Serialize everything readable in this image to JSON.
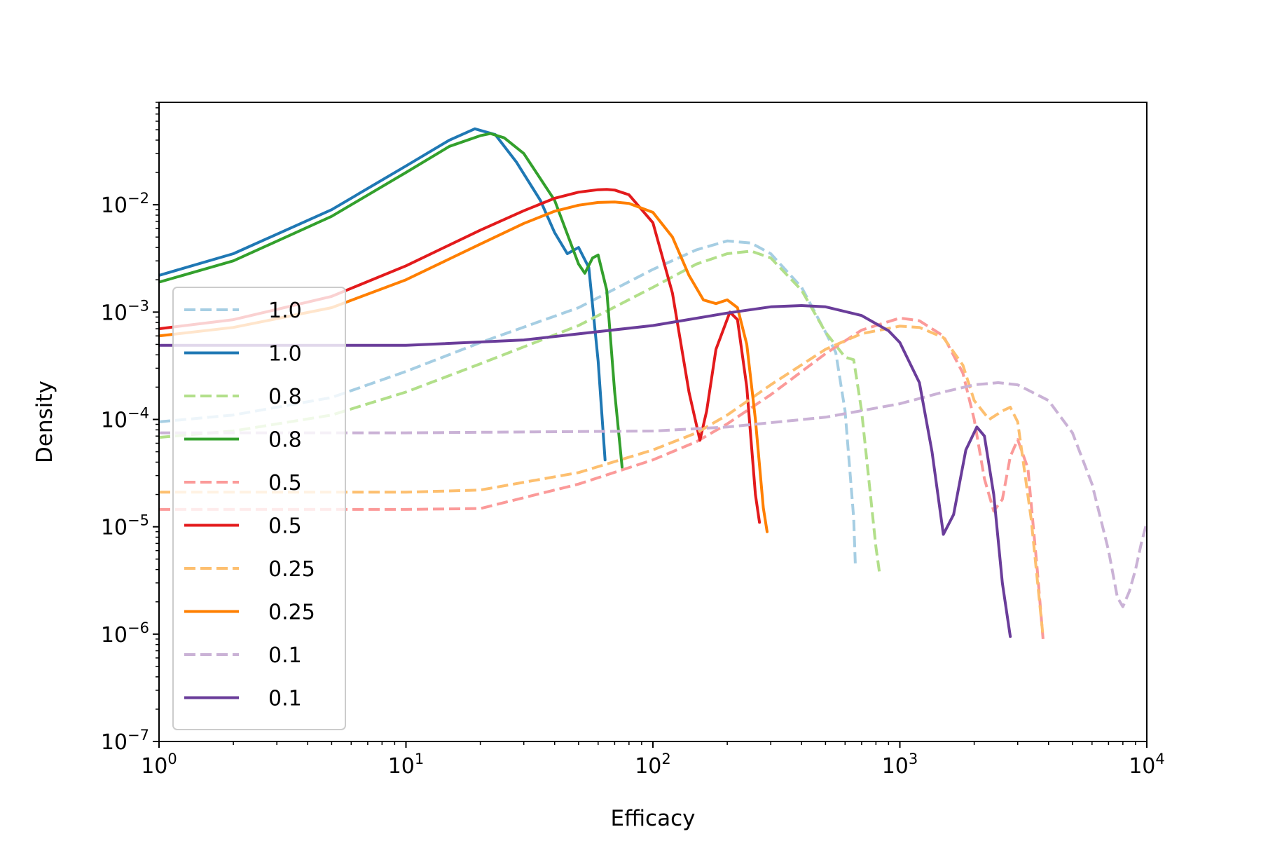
{
  "chart_data": {
    "type": "line",
    "title": "",
    "xlabel": "Efficacy",
    "ylabel": "Density",
    "xscale": "log",
    "yscale": "log",
    "xlim": [
      1,
      10000
    ],
    "ylim": [
      1e-07,
      0.09
    ],
    "grid": false,
    "legend": "lower-left",
    "x_ticks": [
      {
        "base": "10",
        "exp": "0",
        "value": 1
      },
      {
        "base": "10",
        "exp": "1",
        "value": 10
      },
      {
        "base": "10",
        "exp": "2",
        "value": 100
      },
      {
        "base": "10",
        "exp": "3",
        "value": 1000
      },
      {
        "base": "10",
        "exp": "4",
        "value": 10000
      }
    ],
    "y_ticks": [
      {
        "base": "10",
        "exp": "−7",
        "value": 1e-07
      },
      {
        "base": "10",
        "exp": "−6",
        "value": 1e-06
      },
      {
        "base": "10",
        "exp": "−5",
        "value": 1e-05
      },
      {
        "base": "10",
        "exp": "−4",
        "value": 0.0001
      },
      {
        "base": "10",
        "exp": "−3",
        "value": 0.001
      },
      {
        "base": "10",
        "exp": "−2",
        "value": 0.01
      }
    ],
    "series": [
      {
        "name": "1.0",
        "color": "#a6cee3",
        "dashed": true,
        "x": [
          1,
          2,
          5,
          10,
          20,
          50,
          100,
          150,
          200,
          250,
          300,
          400,
          500,
          550,
          600,
          650,
          660
        ],
        "y": [
          9.5e-05,
          0.00011,
          0.00016,
          0.00028,
          0.00052,
          0.0011,
          0.0025,
          0.0038,
          0.0046,
          0.0044,
          0.0035,
          0.0017,
          0.00065,
          0.00042,
          0.00012,
          1.2e-05,
          4.5e-06
        ]
      },
      {
        "name": "1.0",
        "color": "#1f78b4",
        "dashed": false,
        "x": [
          1,
          2,
          5,
          10,
          15,
          19,
          23,
          28,
          35,
          40,
          45,
          50,
          55,
          60,
          62,
          64
        ],
        "y": [
          0.0022,
          0.0035,
          0.009,
          0.023,
          0.04,
          0.051,
          0.045,
          0.025,
          0.011,
          0.0055,
          0.0035,
          0.004,
          0.0026,
          0.00035,
          0.00012,
          4.2e-05
        ]
      },
      {
        "name": "0.8",
        "color": "#b2df8a",
        "dashed": true,
        "x": [
          1,
          2,
          5,
          10,
          20,
          50,
          100,
          150,
          200,
          250,
          300,
          400,
          500,
          600,
          650,
          700,
          800,
          830
        ],
        "y": [
          6.8e-05,
          7.8e-05,
          0.00011,
          0.00018,
          0.00033,
          0.00075,
          0.0017,
          0.0028,
          0.0035,
          0.0037,
          0.0032,
          0.0016,
          0.00065,
          0.00038,
          0.00036,
          0.00012,
          6.5e-06,
          3.5e-06
        ]
      },
      {
        "name": "0.8",
        "color": "#33a02c",
        "dashed": false,
        "x": [
          1,
          2,
          5,
          10,
          15,
          20,
          22,
          25,
          30,
          40,
          50,
          53,
          57,
          60,
          65,
          70,
          75
        ],
        "y": [
          0.0019,
          0.003,
          0.0078,
          0.02,
          0.035,
          0.044,
          0.046,
          0.042,
          0.03,
          0.011,
          0.0028,
          0.0023,
          0.0032,
          0.0034,
          0.0016,
          0.00018,
          3.6e-05
        ]
      },
      {
        "name": "0.5",
        "color": "#fb9a99",
        "dashed": true,
        "x": [
          1,
          10,
          20,
          50,
          100,
          150,
          200,
          300,
          500,
          700,
          1000,
          1200,
          1500,
          1800,
          2000,
          2200,
          2400,
          2600,
          2800,
          3000,
          3300,
          3600,
          3800
        ],
        "y": [
          1.45e-05,
          1.45e-05,
          1.48e-05,
          2.5e-05,
          4.2e-05,
          6.2e-05,
          9.1e-05,
          0.00017,
          0.00041,
          0.00068,
          0.00088,
          0.00083,
          0.0006,
          0.00027,
          0.0001,
          2.8e-05,
          1.4e-05,
          1.8e-05,
          4.5e-05,
          6.5e-05,
          3.5e-05,
          4e-06,
          9e-07
        ]
      },
      {
        "name": "0.5",
        "color": "#e31a1c",
        "dashed": false,
        "x": [
          1,
          2,
          5,
          10,
          20,
          30,
          40,
          50,
          60,
          65,
          70,
          80,
          100,
          120,
          140,
          155,
          165,
          180,
          205,
          220,
          240,
          260,
          270
        ],
        "y": [
          0.0007,
          0.00085,
          0.0014,
          0.0027,
          0.0058,
          0.0088,
          0.0115,
          0.0131,
          0.0138,
          0.0139,
          0.0137,
          0.0124,
          0.0068,
          0.0015,
          0.00018,
          6.4e-05,
          0.00012,
          0.00045,
          0.001,
          0.00085,
          0.0002,
          2e-05,
          1.1e-05
        ]
      },
      {
        "name": "0.25",
        "color": "#fdbf6f",
        "dashed": true,
        "x": [
          1,
          10,
          20,
          50,
          100,
          150,
          200,
          300,
          500,
          700,
          1000,
          1200,
          1500,
          1800,
          2000,
          2300,
          2600,
          2800,
          3000,
          3400,
          3800
        ],
        "y": [
          2.1e-05,
          2.1e-05,
          2.2e-05,
          3.2e-05,
          5.2e-05,
          7.5e-05,
          0.00011,
          0.00021,
          0.00045,
          0.00063,
          0.00074,
          0.00072,
          0.00058,
          0.00032,
          0.00015,
          0.0001,
          0.00012,
          0.00013,
          9.5e-05,
          1.2e-05,
          9.5e-07
        ]
      },
      {
        "name": "0.25",
        "color": "#ff7f00",
        "dashed": false,
        "x": [
          1,
          2,
          5,
          10,
          20,
          30,
          40,
          50,
          60,
          70,
          80,
          100,
          120,
          140,
          160,
          180,
          200,
          220,
          240,
          260,
          280,
          290
        ],
        "y": [
          0.0006,
          0.00072,
          0.0011,
          0.002,
          0.0043,
          0.0067,
          0.0087,
          0.0099,
          0.0105,
          0.0106,
          0.0103,
          0.0085,
          0.005,
          0.0022,
          0.0013,
          0.0012,
          0.0013,
          0.0011,
          0.0005,
          0.0001,
          1.5e-05,
          9e-06
        ]
      },
      {
        "name": "0.1",
        "color": "#cab2d6",
        "dashed": true,
        "x": [
          1,
          10,
          100,
          200,
          500,
          1000,
          1500,
          2000,
          2500,
          3000,
          4000,
          5000,
          6000,
          7000,
          7600,
          8000,
          8500,
          9000,
          9500,
          10000
        ],
        "y": [
          7.5e-05,
          7.5e-05,
          7.8e-05,
          8.5e-05,
          0.000105,
          0.00014,
          0.00018,
          0.00021,
          0.00022,
          0.00021,
          0.00015,
          7.5e-05,
          2.5e-05,
          6e-06,
          2.2e-06,
          1.8e-06,
          2.5e-06,
          4e-06,
          7e-06,
          1.1e-05
        ]
      },
      {
        "name": "0.1",
        "color": "#6a3d9a",
        "dashed": false,
        "x": [
          1,
          3,
          10,
          30,
          100,
          200,
          300,
          400,
          500,
          700,
          900,
          1000,
          1200,
          1350,
          1500,
          1650,
          1850,
          2050,
          2200,
          2400,
          2600,
          2800
        ],
        "y": [
          0.00049,
          0.00049,
          0.00049,
          0.00055,
          0.00075,
          0.00098,
          0.00112,
          0.00115,
          0.00112,
          0.00093,
          0.00067,
          0.00052,
          0.00022,
          5e-05,
          8.5e-06,
          1.3e-05,
          5.2e-05,
          8.5e-05,
          7e-05,
          2e-05,
          3e-06,
          9.5e-07
        ]
      }
    ]
  }
}
